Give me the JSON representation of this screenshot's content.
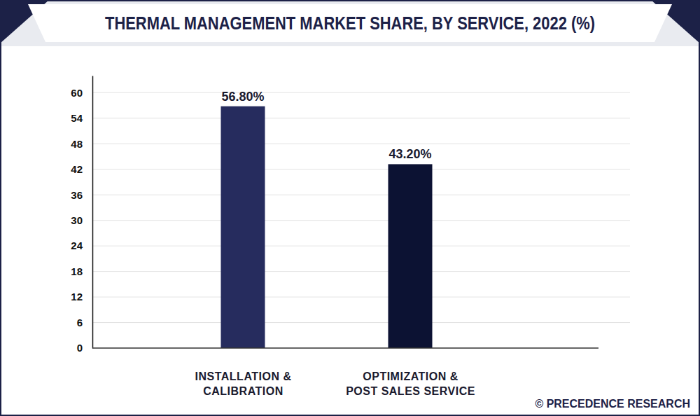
{
  "chart_data": {
    "type": "bar",
    "title": "THERMAL MANAGEMENT MARKET SHARE, BY SERVICE, 2022 (%)",
    "categories": [
      "INSTALLATION &\nCALIBRATION",
      "OPTIMIZATION &\nPOST SALES SERVICE"
    ],
    "values": [
      56.8,
      43.2
    ],
    "value_labels": [
      "56.80%",
      "43.20%"
    ],
    "colors": [
      "#262c5e",
      "#0c1233"
    ],
    "ylim": [
      0,
      64
    ],
    "yticks": [
      0,
      6,
      12,
      18,
      24,
      30,
      36,
      42,
      48,
      54,
      60
    ],
    "grid": true,
    "data_labels": true,
    "source": "© PRECEDENCE RESEARCH"
  }
}
